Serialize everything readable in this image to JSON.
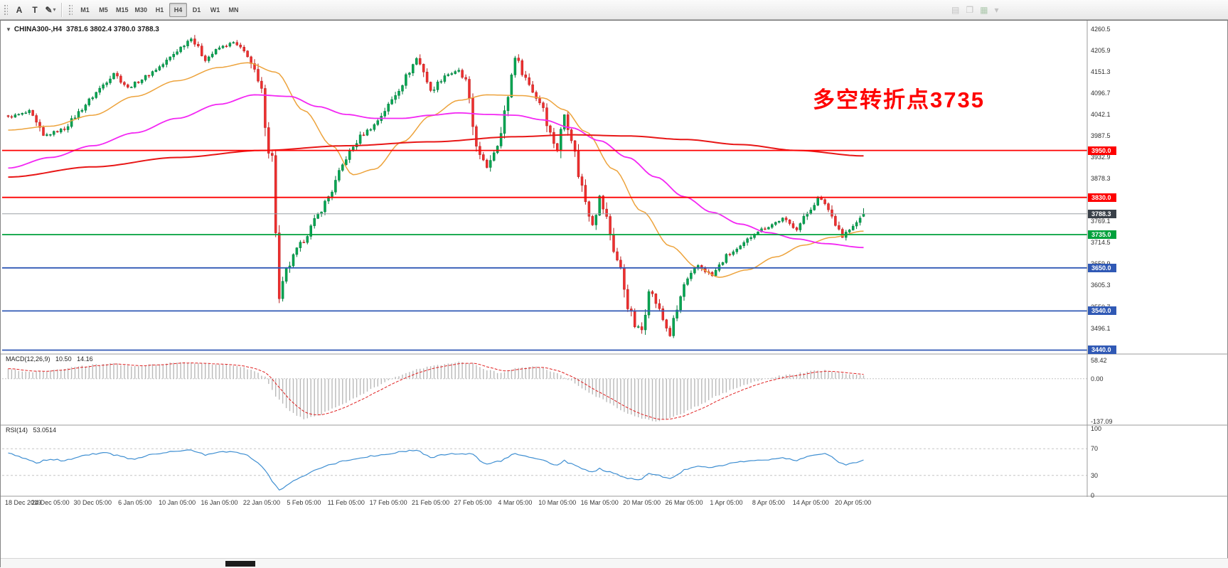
{
  "icons": {
    "symbol_dropdown": "▼"
  },
  "toolbar": {
    "tools": [
      {
        "name": "text-tool",
        "glyph": "A"
      },
      {
        "name": "text-label-tool",
        "glyph": "T"
      },
      {
        "name": "draw-tools",
        "glyph": "✎"
      },
      {
        "name": "draw-tools-caret",
        "glyph": "▾"
      }
    ],
    "timeframes": [
      "M1",
      "M5",
      "M15",
      "M30",
      "H1",
      "H4",
      "D1",
      "W1",
      "MN"
    ],
    "active_timeframe": "H4",
    "right_icons": [
      {
        "name": "chart-list",
        "glyph": "▤",
        "color": "#9d9d9d"
      },
      {
        "name": "cascade-windows",
        "glyph": "❐",
        "color": "#9d9d9d"
      },
      {
        "name": "grid",
        "glyph": "▦",
        "color": "#76a876"
      },
      {
        "name": "dropdown",
        "glyph": "▾",
        "color": "#9d9d9d"
      }
    ]
  },
  "chart_data": {
    "type": "candlestick",
    "symbol": "CHINA300-",
    "period": "H4",
    "header_symbol": "CHINA300-,H4",
    "header_ohlc": "3781.6 3802.4 3780.0 3788.3",
    "last_bar": {
      "open": 3781.6,
      "high": 3802.4,
      "low": 3780.0,
      "close": 3788.3
    },
    "bars": 244,
    "annotation": {
      "text": "多空转折点3735",
      "color": "#fe0000"
    },
    "colors": {
      "up": "#00a651",
      "up_border": "#007a3c",
      "down": "#ef2f2f",
      "down_border": "#b91c1c",
      "ma_fast": "#eda33c",
      "ma_mid": "#f327f3",
      "ma_slow": "#e81717",
      "bid_line": "#9aa0a6",
      "bid_tag_bg": "#3a4149",
      "separator": "#9b9b9b"
    },
    "price_axis": {
      "min": 3430,
      "max": 4278,
      "tick_labels": [
        "4260.5",
        "4205.9",
        "4151.3",
        "4096.7",
        "4042.1",
        "3987.5",
        "3932.9",
        "3878.3",
        "3823.7",
        "3769.1",
        "3714.5",
        "3659.9",
        "3605.3",
        "3550.7",
        "3496.1",
        "3441.5"
      ]
    },
    "hlines": [
      {
        "price": 3950.0,
        "label": "3950.0",
        "color": "#fe0000",
        "width": 1.8
      },
      {
        "price": 3830.0,
        "label": "3830.0",
        "color": "#fe0000",
        "width": 1.8
      },
      {
        "price": 3735.0,
        "label": "3735.0",
        "color": "#00a13c",
        "width": 1.8
      },
      {
        "price": 3650.0,
        "label": "3650.0",
        "color": "#3059b5",
        "width": 1.8
      },
      {
        "price": 3540.0,
        "label": "3540.0",
        "color": "#3059b5",
        "width": 1.8
      },
      {
        "price": 3440.0,
        "label": "3440.0",
        "color": "#3059b5",
        "width": 1.8
      }
    ],
    "bid": {
      "price": 3788.3,
      "label": "3788.3"
    },
    "dates": [
      "18 Dec 2019",
      "24 Dec 05:00",
      "30 Dec 05:00",
      "6 Jan 05:00",
      "10 Jan 05:00",
      "16 Jan 05:00",
      "22 Jan 05:00",
      "5 Feb 05:00",
      "11 Feb 05:00",
      "17 Feb 05:00",
      "21 Feb 05:00",
      "27 Feb 05:00",
      "4 Mar 05:00",
      "10 Mar 05:00",
      "16 Mar 05:00",
      "20 Mar 05:00",
      "26 Mar 05:00",
      "1 Apr 05:00",
      "8 Apr 05:00",
      "14 Apr 05:00",
      "20 Apr 05:00"
    ],
    "price_keyframes": [
      [
        0,
        4035
      ],
      [
        6,
        4048
      ],
      [
        10,
        3986
      ],
      [
        16,
        4006
      ],
      [
        24,
        4088
      ],
      [
        30,
        4148
      ],
      [
        34,
        4110
      ],
      [
        38,
        4132
      ],
      [
        44,
        4170
      ],
      [
        48,
        4205
      ],
      [
        52,
        4238
      ],
      [
        56,
        4182
      ],
      [
        60,
        4212
      ],
      [
        64,
        4225
      ],
      [
        68,
        4195
      ],
      [
        70,
        4148
      ],
      [
        72,
        4095
      ],
      [
        74,
        3955
      ],
      [
        75,
        3930
      ],
      [
        77,
        3565
      ],
      [
        79,
        3640
      ],
      [
        82,
        3695
      ],
      [
        84,
        3722
      ],
      [
        88,
        3785
      ],
      [
        92,
        3848
      ],
      [
        96,
        3932
      ],
      [
        100,
        3985
      ],
      [
        104,
        4015
      ],
      [
        108,
        4065
      ],
      [
        112,
        4122
      ],
      [
        116,
        4185
      ],
      [
        118,
        4155
      ],
      [
        120,
        4100
      ],
      [
        124,
        4142
      ],
      [
        128,
        4152
      ],
      [
        130,
        4122
      ],
      [
        132,
        4012
      ],
      [
        134,
        3932
      ],
      [
        136,
        3908
      ],
      [
        140,
        3992
      ],
      [
        144,
        4192
      ],
      [
        146,
        4152
      ],
      [
        150,
        4085
      ],
      [
        152,
        4062
      ],
      [
        154,
        3992
      ],
      [
        156,
        3952
      ],
      [
        158,
        4042
      ],
      [
        160,
        3988
      ],
      [
        162,
        3892
      ],
      [
        164,
        3822
      ],
      [
        166,
        3762
      ],
      [
        168,
        3832
      ],
      [
        170,
        3775
      ],
      [
        172,
        3698
      ],
      [
        174,
        3642
      ],
      [
        176,
        3558
      ],
      [
        178,
        3502
      ],
      [
        180,
        3492
      ],
      [
        182,
        3598
      ],
      [
        184,
        3562
      ],
      [
        186,
        3518
      ],
      [
        188,
        3478
      ],
      [
        190,
        3542
      ],
      [
        192,
        3606
      ],
      [
        196,
        3656
      ],
      [
        200,
        3630
      ],
      [
        204,
        3680
      ],
      [
        208,
        3702
      ],
      [
        212,
        3740
      ],
      [
        216,
        3756
      ],
      [
        220,
        3776
      ],
      [
        222,
        3762
      ],
      [
        224,
        3750
      ],
      [
        228,
        3803
      ],
      [
        230,
        3827
      ],
      [
        232,
        3816
      ],
      [
        234,
        3782
      ],
      [
        236,
        3750
      ],
      [
        237,
        3729
      ],
      [
        238,
        3740
      ],
      [
        240,
        3754
      ],
      [
        242,
        3776
      ],
      [
        243,
        3788
      ]
    ],
    "ma_lines": [
      {
        "name": "ma-fast-line",
        "color_key": "ma_fast",
        "width": 1.5,
        "keyframes": [
          [
            0,
            4002
          ],
          [
            12,
            4012
          ],
          [
            24,
            4040
          ],
          [
            36,
            4088
          ],
          [
            48,
            4128
          ],
          [
            60,
            4162
          ],
          [
            68,
            4174
          ],
          [
            76,
            4150
          ],
          [
            84,
            4052
          ],
          [
            92,
            3962
          ],
          [
            98,
            3888
          ],
          [
            104,
            3902
          ],
          [
            112,
            3972
          ],
          [
            120,
            4038
          ],
          [
            128,
            4078
          ],
          [
            136,
            4092
          ],
          [
            146,
            4090
          ],
          [
            152,
            4084
          ],
          [
            158,
            4054
          ],
          [
            164,
            3998
          ],
          [
            172,
            3902
          ],
          [
            180,
            3795
          ],
          [
            188,
            3706
          ],
          [
            196,
            3650
          ],
          [
            202,
            3626
          ],
          [
            210,
            3645
          ],
          [
            218,
            3678
          ],
          [
            226,
            3708
          ],
          [
            234,
            3728
          ],
          [
            243,
            3744
          ]
        ]
      },
      {
        "name": "ma-mid-line",
        "color_key": "ma_mid",
        "width": 1.8,
        "keyframes": [
          [
            0,
            3905
          ],
          [
            12,
            3932
          ],
          [
            24,
            3962
          ],
          [
            36,
            3995
          ],
          [
            48,
            4032
          ],
          [
            60,
            4068
          ],
          [
            70,
            4092
          ],
          [
            80,
            4088
          ],
          [
            88,
            4062
          ],
          [
            96,
            4042
          ],
          [
            104,
            4032
          ],
          [
            112,
            4032
          ],
          [
            120,
            4040
          ],
          [
            128,
            4046
          ],
          [
            136,
            4042
          ],
          [
            144,
            4040
          ],
          [
            152,
            4028
          ],
          [
            160,
            4008
          ],
          [
            168,
            3975
          ],
          [
            176,
            3932
          ],
          [
            184,
            3882
          ],
          [
            192,
            3832
          ],
          [
            200,
            3792
          ],
          [
            208,
            3762
          ],
          [
            216,
            3740
          ],
          [
            224,
            3724
          ],
          [
            232,
            3712
          ],
          [
            243,
            3702
          ]
        ]
      },
      {
        "name": "ma-slow-line",
        "color_key": "ma_slow",
        "width": 2,
        "keyframes": [
          [
            0,
            3882
          ],
          [
            24,
            3908
          ],
          [
            48,
            3932
          ],
          [
            72,
            3950
          ],
          [
            96,
            3962
          ],
          [
            120,
            3972
          ],
          [
            144,
            3985
          ],
          [
            160,
            3990
          ],
          [
            176,
            3987
          ],
          [
            192,
            3978
          ],
          [
            208,
            3965
          ],
          [
            224,
            3950
          ],
          [
            243,
            3936
          ]
        ]
      }
    ],
    "macd": {
      "label": "MACD(12,26,9)",
      "value": "10.50",
      "signal": "14.16",
      "axis_labels": [
        "58.42",
        "0.00",
        "-137.09"
      ],
      "max": 58.42,
      "min": -137.09,
      "histogram_color": "#b9b9b9",
      "signal_color": "#e02020",
      "zero_line_color": "#c4c4c4",
      "keyframes": [
        [
          0,
          30
        ],
        [
          6,
          22
        ],
        [
          12,
          26
        ],
        [
          18,
          36
        ],
        [
          24,
          44
        ],
        [
          30,
          48
        ],
        [
          36,
          40
        ],
        [
          42,
          46
        ],
        [
          48,
          52
        ],
        [
          54,
          50
        ],
        [
          60,
          46
        ],
        [
          66,
          38
        ],
        [
          70,
          24
        ],
        [
          73,
          5
        ],
        [
          76,
          -55
        ],
        [
          80,
          -105
        ],
        [
          84,
          -128
        ],
        [
          88,
          -118
        ],
        [
          92,
          -98
        ],
        [
          96,
          -78
        ],
        [
          100,
          -52
        ],
        [
          104,
          -28
        ],
        [
          108,
          -6
        ],
        [
          112,
          14
        ],
        [
          116,
          30
        ],
        [
          120,
          38
        ],
        [
          124,
          46
        ],
        [
          128,
          56
        ],
        [
          132,
          48
        ],
        [
          136,
          28
        ],
        [
          140,
          18
        ],
        [
          144,
          32
        ],
        [
          148,
          40
        ],
        [
          152,
          34
        ],
        [
          156,
          16
        ],
        [
          160,
          -8
        ],
        [
          164,
          -38
        ],
        [
          168,
          -62
        ],
        [
          172,
          -88
        ],
        [
          176,
          -112
        ],
        [
          180,
          -128
        ],
        [
          184,
          -137
        ],
        [
          188,
          -126
        ],
        [
          192,
          -108
        ],
        [
          196,
          -86
        ],
        [
          200,
          -62
        ],
        [
          204,
          -42
        ],
        [
          208,
          -24
        ],
        [
          212,
          -10
        ],
        [
          216,
          2
        ],
        [
          220,
          10
        ],
        [
          224,
          16
        ],
        [
          228,
          24
        ],
        [
          232,
          27
        ],
        [
          236,
          20
        ],
        [
          240,
          13
        ],
        [
          243,
          10.5
        ]
      ]
    },
    "rsi": {
      "label": "RSI(14)",
      "value": "53.0514",
      "axis_labels": [
        "100",
        "70",
        "30",
        "0"
      ],
      "levels": [
        70,
        30
      ],
      "line_color": "#3f8fd2",
      "level_color": "#c6c6c6",
      "keyframes": [
        [
          0,
          63
        ],
        [
          4,
          57
        ],
        [
          8,
          49
        ],
        [
          12,
          55
        ],
        [
          16,
          52
        ],
        [
          20,
          58
        ],
        [
          24,
          62
        ],
        [
          28,
          64
        ],
        [
          32,
          58
        ],
        [
          36,
          54
        ],
        [
          40,
          60
        ],
        [
          44,
          64
        ],
        [
          48,
          66
        ],
        [
          52,
          68
        ],
        [
          56,
          61
        ],
        [
          60,
          65
        ],
        [
          64,
          66
        ],
        [
          68,
          60
        ],
        [
          71,
          48
        ],
        [
          73,
          38
        ],
        [
          75,
          22
        ],
        [
          77,
          8
        ],
        [
          79,
          15
        ],
        [
          82,
          25
        ],
        [
          86,
          35
        ],
        [
          90,
          44
        ],
        [
          94,
          50
        ],
        [
          98,
          55
        ],
        [
          102,
          58
        ],
        [
          106,
          61
        ],
        [
          110,
          64
        ],
        [
          114,
          67
        ],
        [
          116,
          68
        ],
        [
          120,
          57
        ],
        [
          124,
          61
        ],
        [
          128,
          63
        ],
        [
          132,
          62
        ],
        [
          134,
          52
        ],
        [
          136,
          46
        ],
        [
          140,
          52
        ],
        [
          144,
          63
        ],
        [
          148,
          58
        ],
        [
          152,
          53
        ],
        [
          156,
          45
        ],
        [
          158,
          52
        ],
        [
          162,
          42
        ],
        [
          166,
          35
        ],
        [
          168,
          40
        ],
        [
          172,
          33
        ],
        [
          176,
          26
        ],
        [
          180,
          24
        ],
        [
          182,
          33
        ],
        [
          186,
          28
        ],
        [
          188,
          25
        ],
        [
          192,
          38
        ],
        [
          196,
          44
        ],
        [
          200,
          42
        ],
        [
          204,
          47
        ],
        [
          208,
          50
        ],
        [
          212,
          53
        ],
        [
          216,
          54
        ],
        [
          220,
          56
        ],
        [
          224,
          52
        ],
        [
          228,
          60
        ],
        [
          232,
          62
        ],
        [
          234,
          57
        ],
        [
          236,
          50
        ],
        [
          238,
          46
        ],
        [
          240,
          48
        ],
        [
          243,
          53
        ]
      ]
    }
  }
}
